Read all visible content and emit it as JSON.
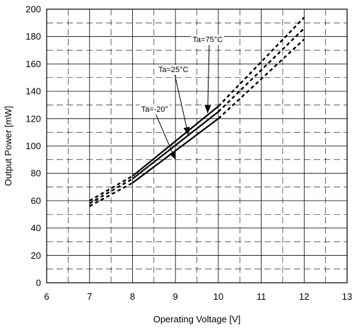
{
  "chart_data": {
    "type": "line",
    "title": "",
    "xlabel": "Operating Voltage [V]",
    "ylabel": "Output Power [mW]",
    "xlim": [
      6,
      13
    ],
    "ylim": [
      0,
      200
    ],
    "xticks": [
      "6",
      "7",
      "8",
      "9",
      "10",
      "11",
      "12",
      "13"
    ],
    "yticks": [
      "0",
      "20",
      "40",
      "60",
      "80",
      "100",
      "120",
      "140",
      "160",
      "180",
      "200"
    ],
    "grid": "major solid, minor dashed",
    "legend": "none",
    "series": [
      {
        "label": "Ta=75°C",
        "solid": {
          "x": [
            8.0,
            10.0
          ],
          "y": [
            73,
            120
          ]
        },
        "dashed_low": {
          "x": [
            7.0,
            8.0
          ],
          "y": [
            56,
            73
          ]
        },
        "dashed_high": {
          "x": [
            10.0,
            12.0
          ],
          "y": [
            120,
            178
          ]
        }
      },
      {
        "label": "Ta=25°C",
        "solid": {
          "x": [
            8.0,
            10.0
          ],
          "y": [
            76,
            125
          ]
        },
        "dashed_low": {
          "x": [
            7.0,
            8.0
          ],
          "y": [
            58,
            76
          ]
        },
        "dashed_high": {
          "x": [
            10.0,
            12.0
          ],
          "y": [
            125,
            186
          ]
        }
      },
      {
        "label": "Ta=-20°",
        "solid": {
          "x": [
            8.0,
            10.0
          ],
          "y": [
            78,
            129
          ]
        },
        "dashed_low": {
          "x": [
            7.0,
            8.0
          ],
          "y": [
            60,
            78
          ]
        },
        "dashed_high": {
          "x": [
            10.0,
            12.0
          ],
          "y": [
            129,
            194
          ]
        }
      }
    ],
    "annotations": [
      {
        "text": "Ta=75°C",
        "label_at": [
          9.4,
          176
        ],
        "arrow_to": [
          9.75,
          124
        ]
      },
      {
        "text": "Ta=25°C",
        "label_at": [
          8.6,
          154
        ],
        "arrow_to": [
          9.3,
          108
        ]
      },
      {
        "text": "Ta=-20°",
        "label_at": [
          8.2,
          125
        ],
        "arrow_to": [
          9.0,
          90
        ]
      }
    ]
  }
}
